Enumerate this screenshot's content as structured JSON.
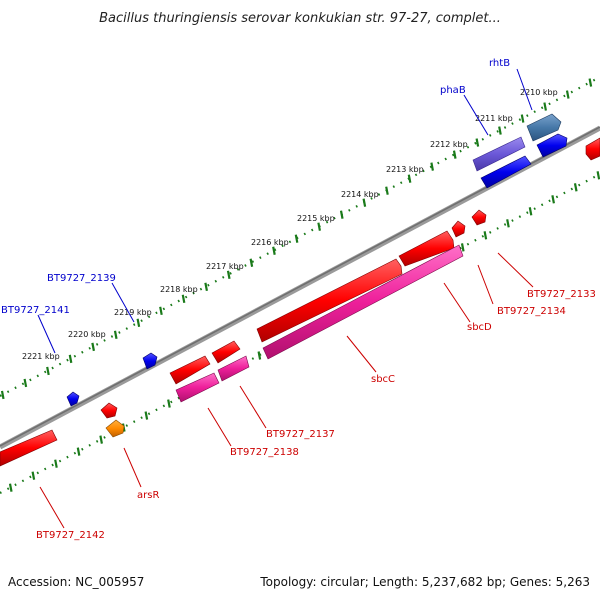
{
  "title": "Bacillus thuringiensis serovar konkukian str. 97-27, complet...",
  "footer": {
    "accession": "Accession: NC_005957",
    "topology": "Topology: circular; Length: 5,237,682 bp; Genes: 5,263"
  },
  "ticks": [
    "2210 kbp",
    "2211 kbp",
    "2212 kbp",
    "2213 kbp",
    "2214 kbp",
    "2215 kbp",
    "2216 kbp",
    "2217 kbp",
    "2218 kbp",
    "2219 kbp",
    "2220 kbp",
    "2221 kbp"
  ],
  "labels": {
    "rhtB": "rhtB",
    "phaB": "phaB",
    "bt2139": "BT9727_2139",
    "bt2141": "BT9727_2141",
    "bt2133": "BT9727_2133",
    "bt2134": "BT9727_2134",
    "sbcD": "sbcD",
    "sbcC": "sbcC",
    "bt2137": "BT9727_2137",
    "bt2138": "BT9727_2138",
    "arsR": "arsR",
    "bt2142": "BT9727_2142"
  },
  "colors": {
    "forward_label": "#0000cc",
    "reverse_label": "#cc0000",
    "backbone": "#808080",
    "tick": "#1a7a1a"
  }
}
